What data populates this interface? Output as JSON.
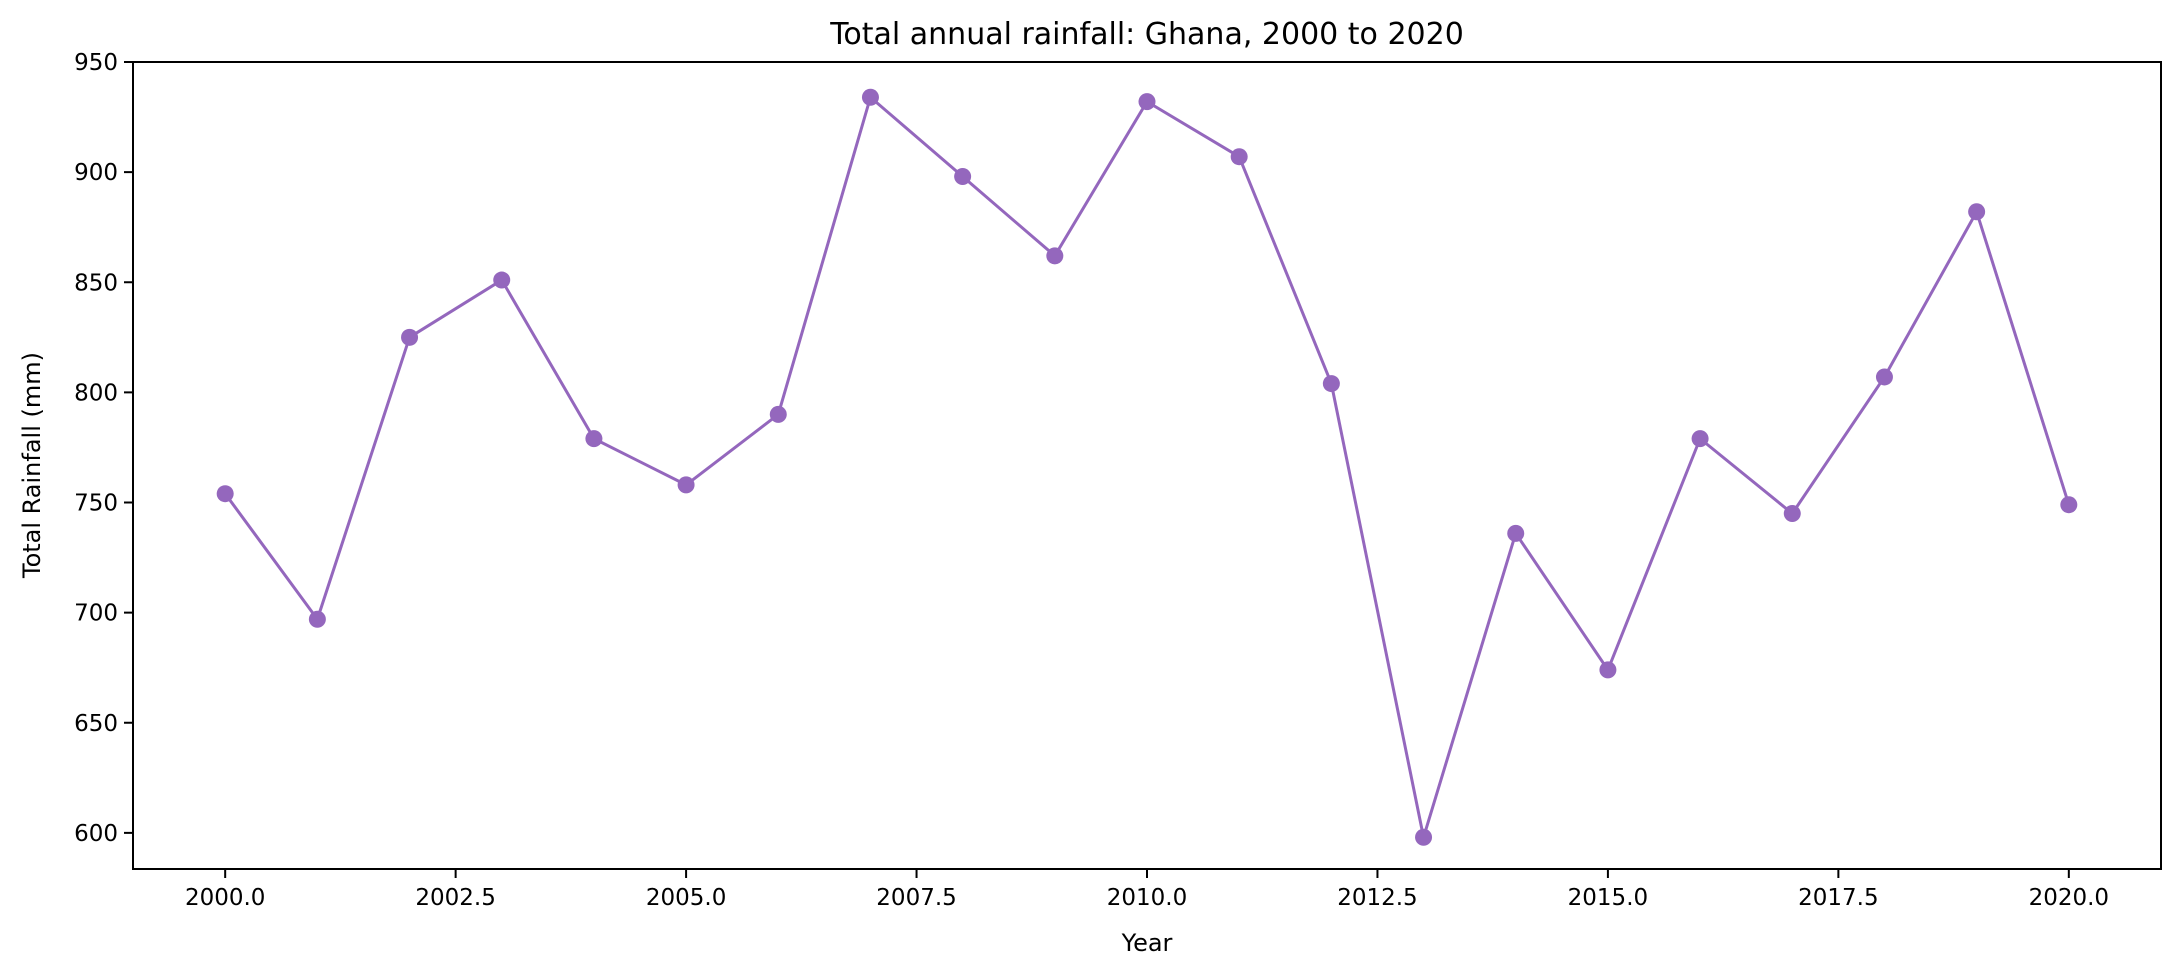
{
  "chart_data": {
    "type": "line",
    "title": "Total annual rainfall: Ghana, 2000 to 2020",
    "xlabel": "Year",
    "ylabel": "Total Rainfall (mm)",
    "xlim": [
      1999.0,
      2021.0
    ],
    "ylim": [
      583.6,
      950.0
    ],
    "x_ticks": [
      2000.0,
      2002.5,
      2005.0,
      2007.5,
      2010.0,
      2012.5,
      2015.0,
      2017.5,
      2020.0
    ],
    "x_tick_labels": [
      "2000.0",
      "2002.5",
      "2005.0",
      "2007.5",
      "2010.0",
      "2012.5",
      "2015.0",
      "2017.5",
      "2020.0"
    ],
    "y_ticks": [
      600,
      650,
      700,
      750,
      800,
      850,
      900,
      950
    ],
    "y_tick_labels": [
      "600",
      "650",
      "700",
      "750",
      "800",
      "850",
      "900",
      "950"
    ],
    "grid": false,
    "legend": "none",
    "color": "#9467bd",
    "marker": "circle",
    "x": [
      2000,
      2001,
      2002,
      2003,
      2004,
      2005,
      2006,
      2007,
      2008,
      2009,
      2010,
      2011,
      2012,
      2013,
      2014,
      2015,
      2016,
      2017,
      2018,
      2019,
      2020
    ],
    "values": [
      754,
      697,
      825,
      851,
      779,
      758,
      790,
      934,
      898,
      862,
      932,
      907,
      804,
      598,
      736,
      674,
      779,
      745,
      807,
      882,
      749
    ]
  }
}
